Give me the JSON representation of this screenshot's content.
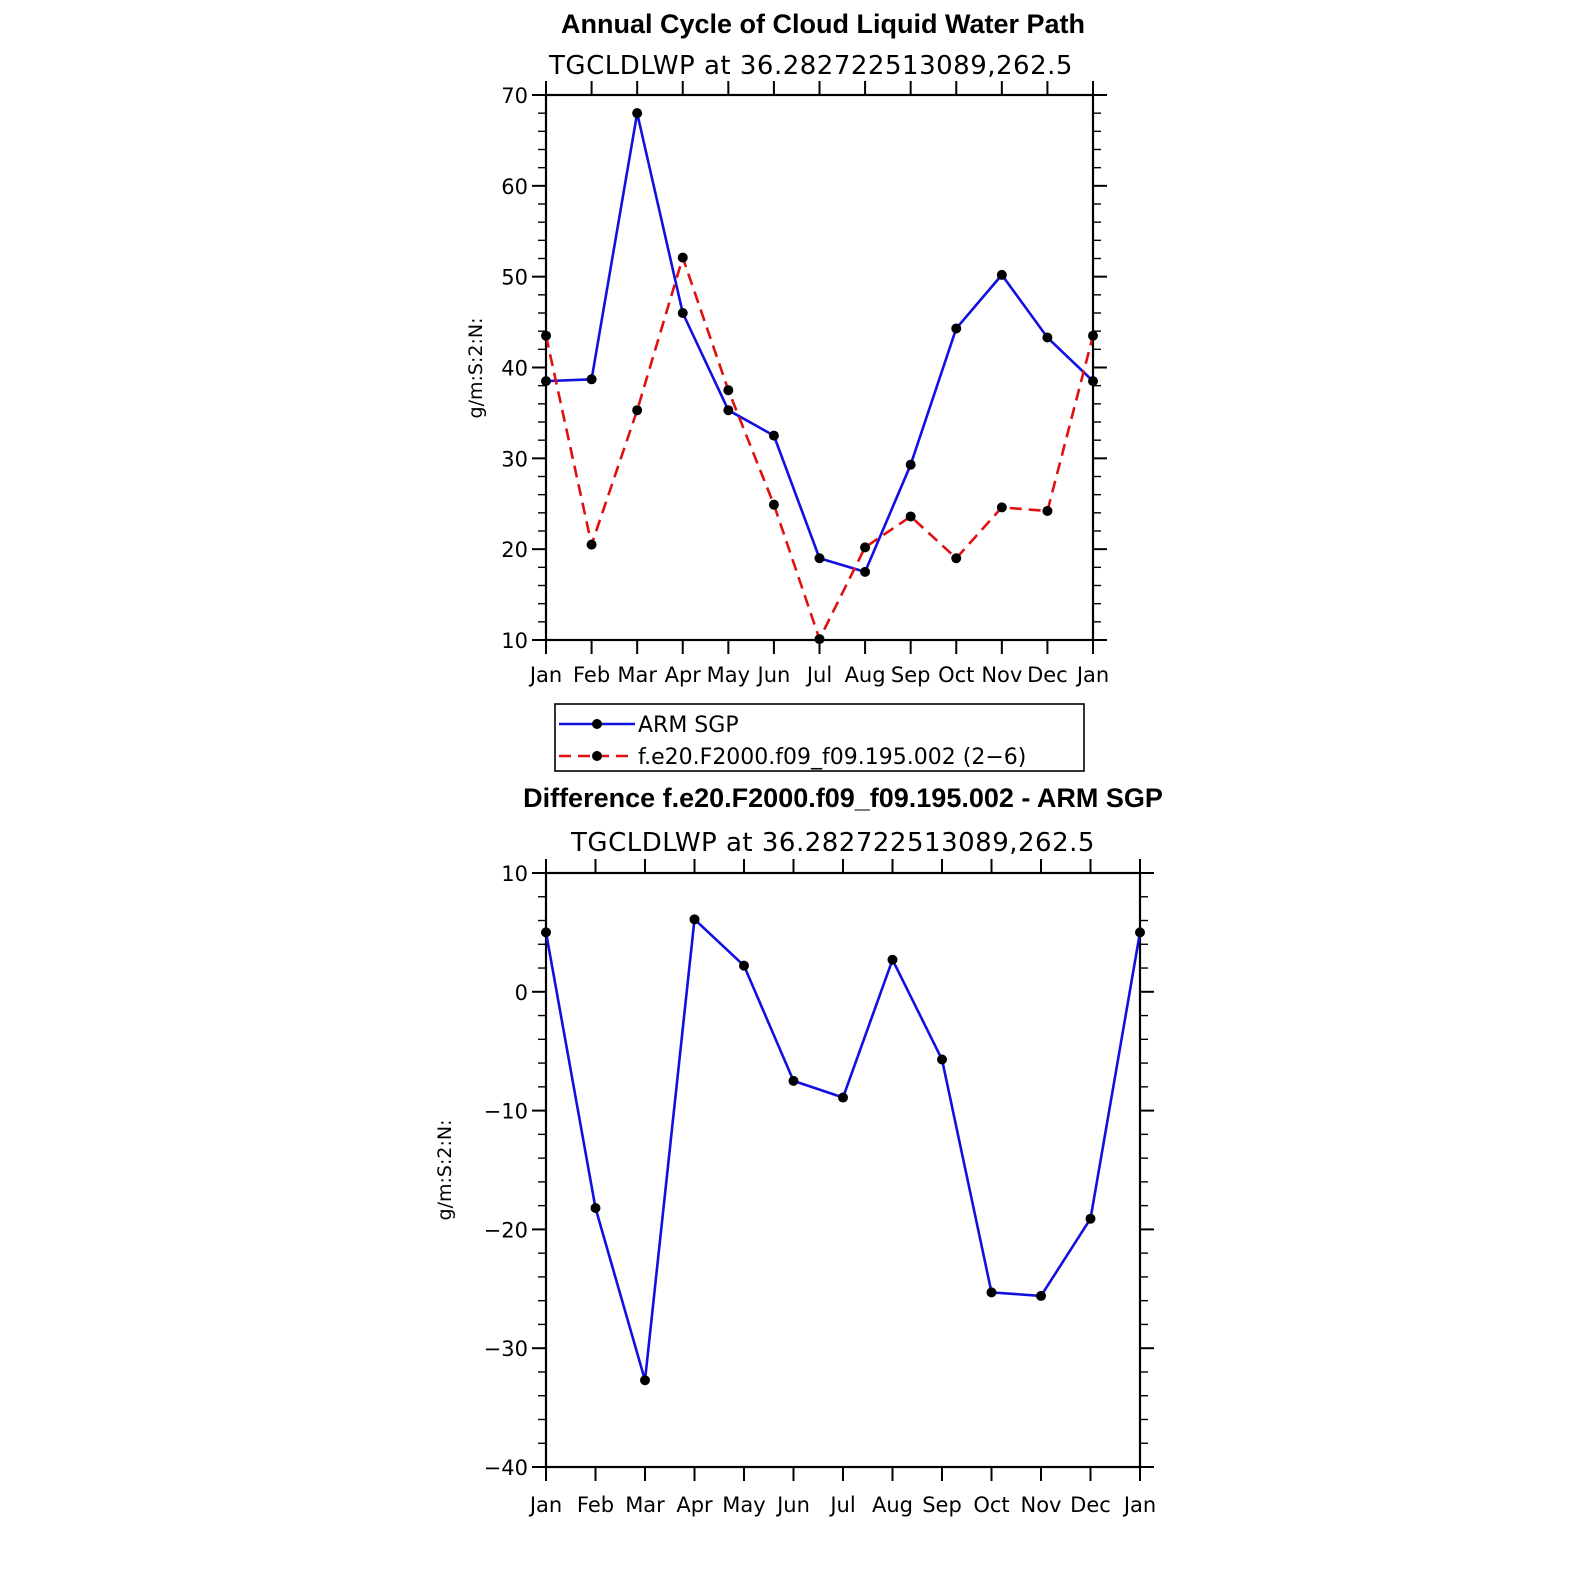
{
  "chart_data": [
    {
      "type": "line",
      "title": "Annual Cycle of Cloud Liquid Water Path",
      "subtitle": "TGCLDLWP  at  36.282722513089,262.5",
      "ylabel": "g/m:S:2:N:",
      "ylim": [
        10,
        70
      ],
      "yticks": [
        10,
        20,
        30,
        40,
        50,
        60,
        70
      ],
      "categories": [
        "Jan",
        "Feb",
        "Mar",
        "Apr",
        "May",
        "Jun",
        "Jul",
        "Aug",
        "Sep",
        "Oct",
        "Nov",
        "Dec",
        "Jan"
      ],
      "series": [
        {
          "name": "ARM  SGP",
          "color": "#1010e0",
          "dash": "solid",
          "values": [
            38.5,
            38.7,
            68.0,
            46.0,
            35.3,
            32.5,
            19.0,
            17.5,
            29.3,
            44.3,
            50.2,
            43.3,
            38.5
          ]
        },
        {
          "name": "f.e20.F2000.f09_f09.195.002 (2−6)",
          "color": "#e01010",
          "dash": "dashed",
          "values": [
            43.5,
            20.5,
            35.3,
            52.1,
            37.5,
            24.9,
            10.1,
            20.2,
            23.6,
            19.0,
            24.6,
            24.2,
            43.5
          ]
        }
      ],
      "legend": [
        "ARM  SGP",
        "f.e20.F2000.f09_f09.195.002 (2−6)"
      ]
    },
    {
      "type": "line",
      "title": "Difference f.e20.F2000.f09_f09.195.002 - ARM SGP",
      "subtitle": "TGCLDLWP  at  36.282722513089,262.5",
      "ylabel": "g/m:S:2:N:",
      "ylim": [
        -40,
        10
      ],
      "yticks": [
        -40,
        -30,
        -20,
        -10,
        0,
        10
      ],
      "ytick_labels": [
        "−40",
        "−30",
        "−20",
        "−10",
        "0",
        "10"
      ],
      "categories": [
        "Jan",
        "Feb",
        "Mar",
        "Apr",
        "May",
        "Jun",
        "Jul",
        "Aug",
        "Sep",
        "Oct",
        "Nov",
        "Dec",
        "Jan"
      ],
      "series": [
        {
          "name": "difference",
          "color": "#1010e0",
          "dash": "solid",
          "values": [
            5.0,
            -18.2,
            -32.7,
            6.1,
            2.2,
            -7.5,
            -8.9,
            2.7,
            -5.7,
            -25.3,
            -25.6,
            -19.1,
            5.0
          ]
        }
      ]
    }
  ]
}
